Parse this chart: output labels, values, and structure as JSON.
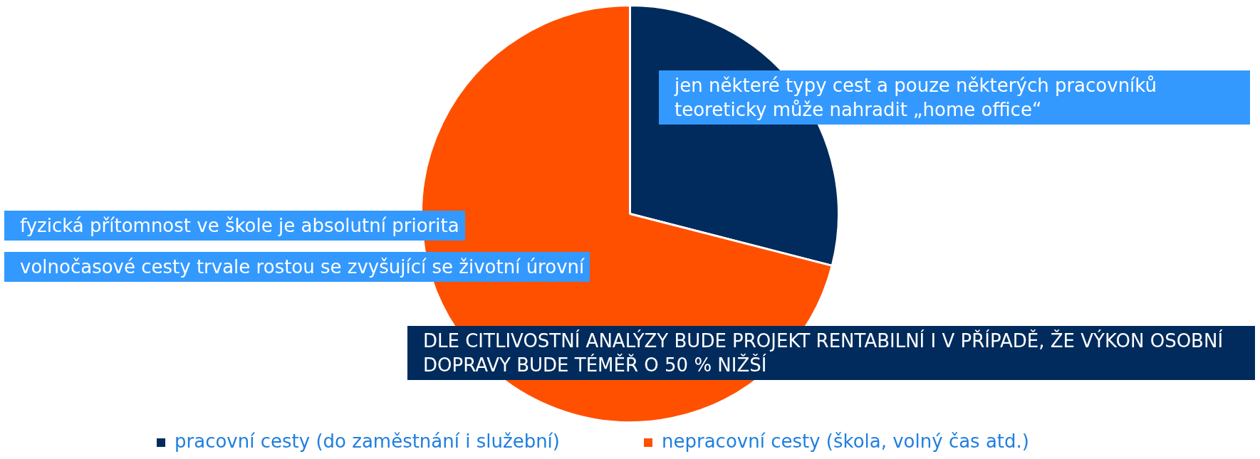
{
  "chart_data": {
    "type": "pie",
    "categories": [
      "pracovní cesty (do zaměstnání i služební)",
      "nepracovní cesty (škola, volný čas atd.)"
    ],
    "values": [
      29,
      71
    ],
    "colors": [
      "#002b5c",
      "#ff5000"
    ],
    "legend": "bottom",
    "annotations": [
      "jen některé typy cest a pouze některých pracovníků teoreticky může nahradit „home office“",
      "fyzická přítomnost ve škole je absolutní priorita",
      "volnočasové cesty trvale rostou se zvyšující se životní úrovní",
      "DLE CITLIVOSTNÍ ANALÝZY BUDE PROJEKT RENTABILNÍ I V PŘÍPADĚ, ŽE VÝKON OSOBNÍ DOPRAVY BUDE TÉMĚŘ O 50 % NIŽŠÍ"
    ]
  }
}
